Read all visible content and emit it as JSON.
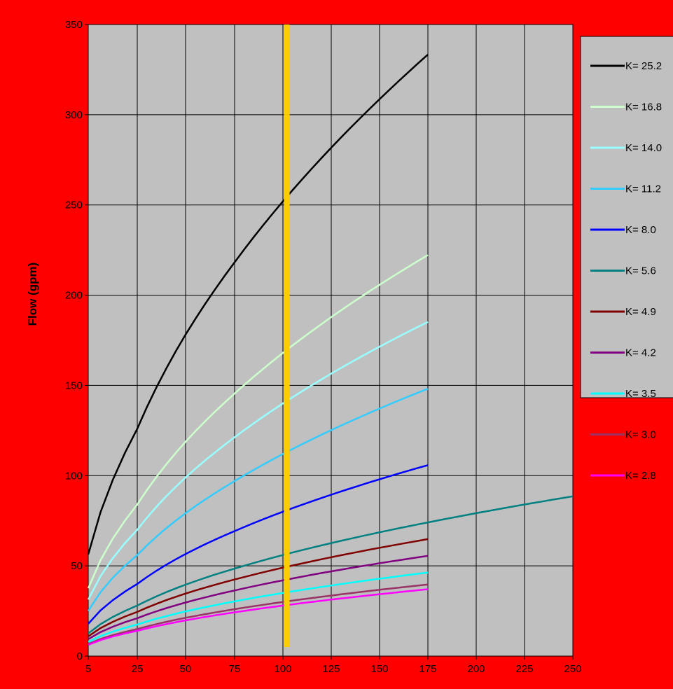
{
  "chart_data": {
    "type": "line",
    "title": "",
    "xlabel": "",
    "ylabel": "Flow (gpm)",
    "xlim": [
      0,
      250
    ],
    "ylim": [
      0,
      350
    ],
    "x_ticks": [
      "5",
      "25",
      "50",
      "75",
      "100",
      "125",
      "150",
      "175",
      "200",
      "225",
      "250"
    ],
    "y_ticks": [
      "0",
      "50",
      "100",
      "150",
      "200",
      "250",
      "300",
      "350"
    ],
    "grid": true,
    "legend_position": "right",
    "colors": {
      "background": "#ff0000",
      "plot_area": "#c0c0c0",
      "grid": "#000000",
      "marker_line": "#ffcc00"
    },
    "marker_line": {
      "x": 102,
      "y_range": [
        5,
        350
      ]
    },
    "x": [
      5,
      10,
      15,
      20,
      25,
      30,
      35,
      40,
      45,
      50,
      55,
      60,
      65,
      70,
      75,
      80,
      85,
      90,
      95,
      100,
      105,
      110,
      115,
      120,
      125,
      130,
      135,
      140,
      145,
      150,
      155,
      160,
      165,
      170,
      175
    ],
    "series": [
      {
        "name": "K= 25.2",
        "color": "#000000",
        "k": 25.2,
        "x_end": 175
      },
      {
        "name": "K= 16.8",
        "color": "#ccffcc",
        "k": 16.8,
        "x_end": 175
      },
      {
        "name": "K= 14.0",
        "color": "#99ffff",
        "k": 14.0,
        "x_end": 175
      },
      {
        "name": "K= 11.2",
        "color": "#33ccff",
        "k": 11.2,
        "x_end": 175
      },
      {
        "name": "K= 8.0",
        "color": "#0000ff",
        "k": 8.0,
        "x_end": 175
      },
      {
        "name": "K= 5.6",
        "color": "#008080",
        "k": 5.6,
        "x_end": 250
      },
      {
        "name": "K= 4.9",
        "color": "#800000",
        "k": 4.9,
        "x_end": 175
      },
      {
        "name": "K= 4.2",
        "color": "#800080",
        "k": 4.2,
        "x_end": 175
      },
      {
        "name": "K= 3.5",
        "color": "#00ffff",
        "k": 3.5,
        "x_end": 175
      },
      {
        "name": "K= 3.0",
        "color": "#993366",
        "k": 3.0,
        "x_end": 175
      },
      {
        "name": "K= 2.8",
        "color": "#ff00ff",
        "k": 2.8,
        "x_end": 175
      }
    ]
  }
}
